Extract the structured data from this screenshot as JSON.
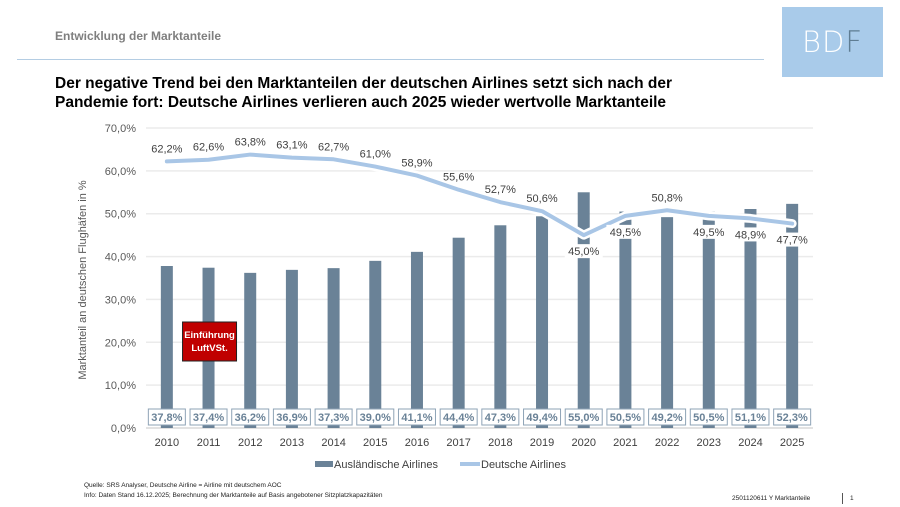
{
  "header": {
    "section_title": "Entwicklung der Marktanteile",
    "logo_text": "BD",
    "logo_text_f": "F"
  },
  "headline": {
    "line1": "Der negative Trend bei den Marktanteilen der deutschen Airlines setzt sich nach der",
    "line2": "Pandemie fort: Deutsche Airlines verlieren auch 2025 wieder wertvolle Marktanteile"
  },
  "chart_data": {
    "type": "bar+line",
    "title": "",
    "xlabel": "",
    "ylabel": "Marktanteil an deutschen Flughäfen in %",
    "ylim": [
      0,
      70
    ],
    "yticks": [
      0,
      10,
      20,
      30,
      40,
      50,
      60,
      70
    ],
    "ytick_labels": [
      "0,0%",
      "10,0%",
      "20,0%",
      "30,0%",
      "40,0%",
      "50,0%",
      "60,0%",
      "70,0%"
    ],
    "grid": true,
    "legend_position": "bottom",
    "categories": [
      "2010",
      "2011",
      "2012",
      "2013",
      "2014",
      "2015",
      "2016",
      "2017",
      "2018",
      "2019",
      "2020",
      "2021",
      "2022",
      "2023",
      "2024",
      "2025"
    ],
    "series": [
      {
        "name": "Ausländische Airlines",
        "type": "bar",
        "color": "#6a8297",
        "values": [
          37.8,
          37.4,
          36.2,
          36.9,
          37.3,
          39.0,
          41.1,
          44.4,
          47.3,
          49.4,
          55.0,
          50.5,
          49.2,
          50.5,
          51.1,
          52.3
        ],
        "labels": [
          "37,8%",
          "37,4%",
          "36,2%",
          "36,9%",
          "37,3%",
          "39,0%",
          "41,1%",
          "44,4%",
          "47,3%",
          "49,4%",
          "55,0%",
          "50,5%",
          "49,2%",
          "50,5%",
          "51,1%",
          "52,3%"
        ]
      },
      {
        "name": "Deutsche Airlines",
        "type": "line",
        "color": "#a9c6e6",
        "values": [
          62.2,
          62.6,
          63.8,
          63.1,
          62.7,
          61.0,
          58.9,
          55.6,
          52.7,
          50.6,
          45.0,
          49.5,
          50.8,
          49.5,
          48.9,
          47.7
        ],
        "labels": [
          "62,2%",
          "62,6%",
          "63,8%",
          "63,1%",
          "62,7%",
          "61,0%",
          "58,9%",
          "55,6%",
          "52,7%",
          "50,6%",
          "45,0%",
          "49,5%",
          "50,8%",
          "49,5%",
          "48,9%",
          "47,7%"
        ]
      }
    ],
    "annotations": [
      {
        "text_line1": "Einführung",
        "text_line2": "LuftVSt.",
        "near_category": "2011",
        "color": "#c00000"
      }
    ]
  },
  "footer": {
    "source": "Quelle: SRS Analyser, Deutsche Airline = Airline mit deutschem AOC",
    "info": "Info: Daten Stand 16.12.2025; Berechnung der Marktanteile auf Basis angebotener Sitzplatzkapazitäten",
    "doc_id": "2501120611 Y Marktanteile",
    "page_number": "1"
  }
}
